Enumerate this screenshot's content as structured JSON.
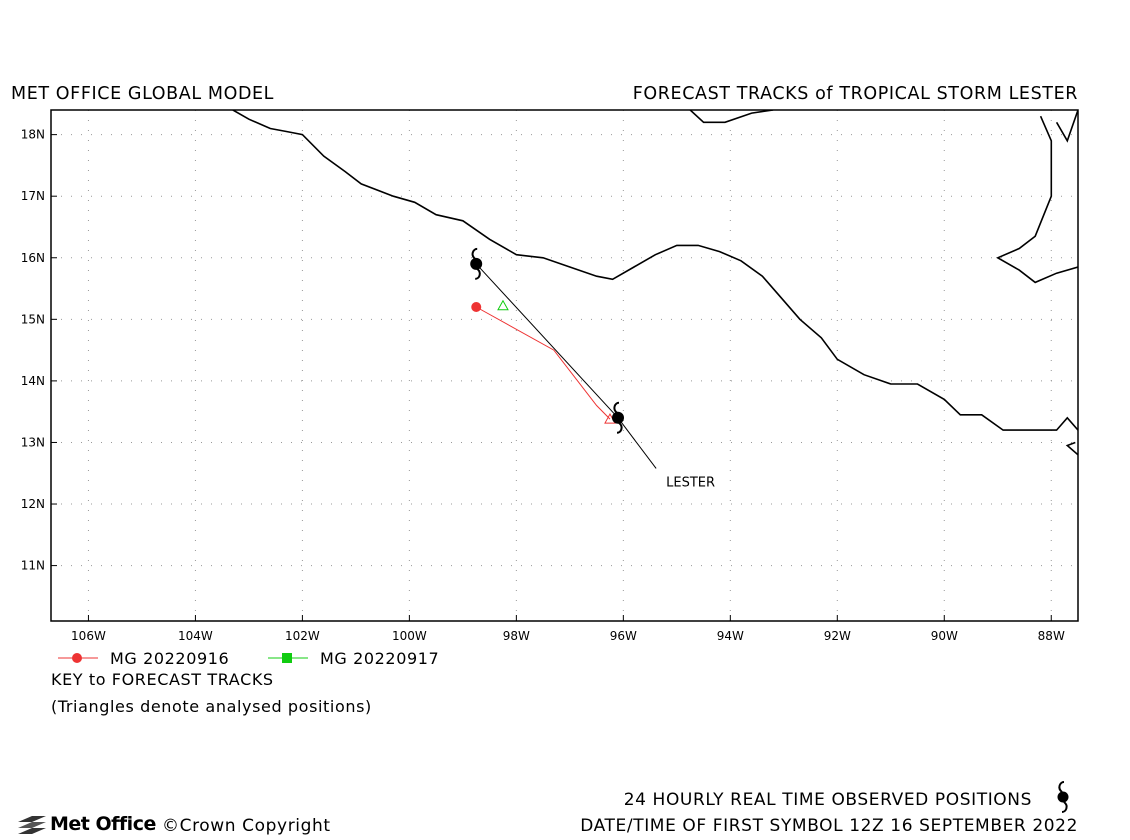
{
  "header": {
    "left_title": "MET OFFICE GLOBAL MODEL",
    "right_title": "FORECAST TRACKS of TROPICAL STORM LESTER"
  },
  "map": {
    "lon_range": [
      -106.7,
      -87.5
    ],
    "lat_range": [
      10.1,
      18.4
    ],
    "lon_ticks": [
      {
        "value": -106,
        "label": "106W"
      },
      {
        "value": -104,
        "label": "104W"
      },
      {
        "value": -102,
        "label": "102W"
      },
      {
        "value": -100,
        "label": "100W"
      },
      {
        "value": -98,
        "label": "98W"
      },
      {
        "value": -96,
        "label": "96W"
      },
      {
        "value": -94,
        "label": "94W"
      },
      {
        "value": -92,
        "label": "92W"
      },
      {
        "value": -90,
        "label": "90W"
      },
      {
        "value": -88,
        "label": "88W"
      }
    ],
    "lat_ticks": [
      {
        "value": 11,
        "label": "11N"
      },
      {
        "value": 12,
        "label": "12N"
      },
      {
        "value": 13,
        "label": "13N"
      },
      {
        "value": 14,
        "label": "14N"
      },
      {
        "value": 15,
        "label": "15N"
      },
      {
        "value": 16,
        "label": "16N"
      },
      {
        "value": 17,
        "label": "17N"
      },
      {
        "value": 18,
        "label": "18N"
      }
    ],
    "grid": "dotted",
    "coastlines": [
      [
        [
          -103.3,
          18.4
        ],
        [
          -103.0,
          18.25
        ],
        [
          -102.6,
          18.1
        ],
        [
          -102.3,
          18.05
        ],
        [
          -102.0,
          18.0
        ],
        [
          -101.6,
          17.65
        ],
        [
          -101.2,
          17.4
        ],
        [
          -100.9,
          17.2
        ],
        [
          -100.3,
          17.0
        ],
        [
          -99.9,
          16.9
        ],
        [
          -99.5,
          16.7
        ],
        [
          -99.0,
          16.6
        ],
        [
          -98.5,
          16.3
        ],
        [
          -98.0,
          16.05
        ],
        [
          -97.5,
          16.0
        ],
        [
          -97.0,
          15.85
        ],
        [
          -96.5,
          15.7
        ],
        [
          -96.2,
          15.65
        ],
        [
          -95.8,
          15.85
        ],
        [
          -95.4,
          16.05
        ],
        [
          -95.0,
          16.2
        ],
        [
          -94.6,
          16.2
        ],
        [
          -94.2,
          16.1
        ],
        [
          -93.8,
          15.95
        ],
        [
          -93.4,
          15.7
        ],
        [
          -93.1,
          15.4
        ],
        [
          -92.7,
          15.0
        ],
        [
          -92.3,
          14.7
        ],
        [
          -92.0,
          14.35
        ],
        [
          -91.5,
          14.1
        ],
        [
          -91.0,
          13.95
        ],
        [
          -90.5,
          13.95
        ],
        [
          -90.0,
          13.7
        ],
        [
          -89.7,
          13.45
        ],
        [
          -89.3,
          13.45
        ],
        [
          -88.9,
          13.2
        ],
        [
          -88.4,
          13.2
        ],
        [
          -87.9,
          13.2
        ],
        [
          -87.7,
          13.4
        ],
        [
          -87.5,
          13.2
        ]
      ],
      [
        [
          -87.55,
          13.0
        ],
        [
          -87.7,
          12.95
        ],
        [
          -87.5,
          12.8
        ]
      ],
      [
        [
          -94.75,
          18.4
        ],
        [
          -94.5,
          18.2
        ],
        [
          -94.1,
          18.2
        ],
        [
          -93.6,
          18.35
        ],
        [
          -93.2,
          18.4
        ]
      ],
      [
        [
          -87.5,
          18.4
        ],
        [
          -87.7,
          17.9
        ],
        [
          -87.9,
          18.2
        ]
      ],
      [
        [
          -88.2,
          18.3
        ],
        [
          -88.0,
          17.9
        ],
        [
          -88.0,
          17.0
        ],
        [
          -88.3,
          16.35
        ],
        [
          -88.6,
          16.15
        ],
        [
          -89.0,
          16.0
        ],
        [
          -88.6,
          15.8
        ],
        [
          -88.3,
          15.6
        ],
        [
          -87.9,
          15.75
        ],
        [
          -87.5,
          15.85
        ]
      ]
    ]
  },
  "storm": {
    "name_label": "LESTER",
    "observed_track": [
      {
        "lon": -96.1,
        "lat": 13.4
      },
      {
        "lon": -98.75,
        "lat": 15.9
      }
    ],
    "label_position": {
      "lon": -95.2,
      "lat": 12.35
    }
  },
  "forecast_tracks": [
    {
      "name": "MG 20220916",
      "color": "#ee3333",
      "marker": "circle",
      "points": [
        {
          "lon": -98.75,
          "lat": 15.2
        },
        {
          "lon": -97.3,
          "lat": 14.5
        },
        {
          "lon": -96.5,
          "lat": 13.6
        },
        {
          "lon": -96.25,
          "lat": 13.38
        }
      ],
      "analysed": {
        "lon": -96.25,
        "lat": 13.38
      }
    },
    {
      "name": "MG 20220917",
      "color": "#11cc11",
      "marker": "square",
      "points": [],
      "analysed": {
        "lon": -98.25,
        "lat": 15.22
      }
    }
  ],
  "legend": {
    "items": [
      {
        "label": "MG 20220916",
        "color": "#ee3333",
        "marker": "circle"
      },
      {
        "label": "MG 20220917",
        "color": "#11cc11",
        "marker": "square"
      }
    ],
    "key_title": "KEY to FORECAST TRACKS",
    "note": "(Triangles denote analysed positions)"
  },
  "footer": {
    "observed_label": "24 HOURLY REAL TIME OBSERVED POSITIONS",
    "datetime_label": "DATE/TIME OF FIRST SYMBOL 12Z 16 SEPTEMBER 2022",
    "logo_text": "Met Office",
    "copyright": "©Crown Copyright"
  }
}
